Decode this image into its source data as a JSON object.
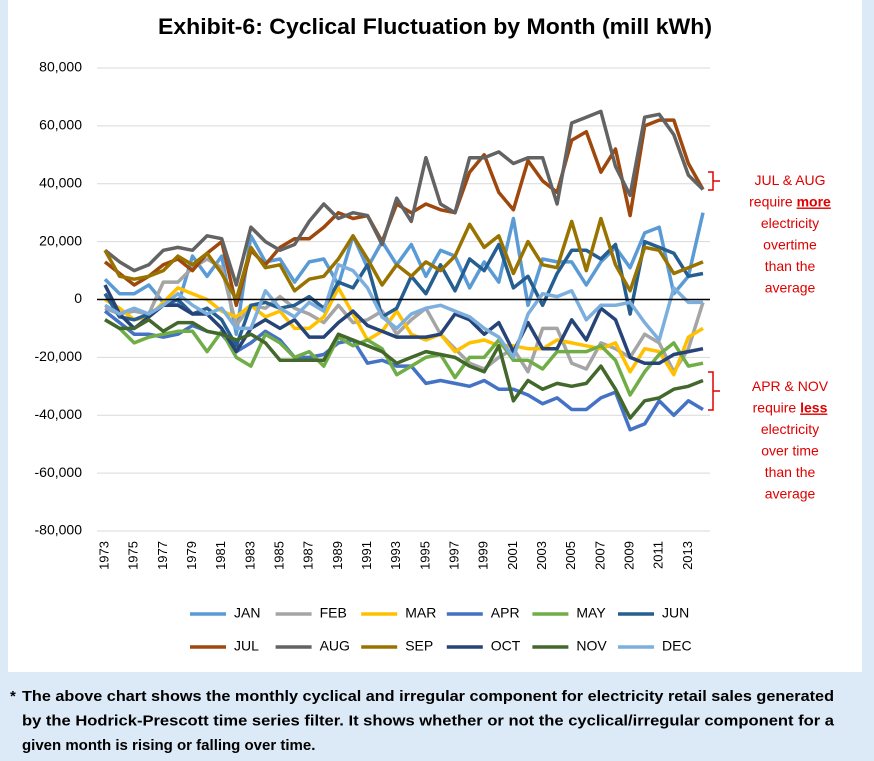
{
  "chart_data": {
    "type": "line",
    "title": "Exhibit-6: Cyclical Fluctuation by Month (mill kWh)",
    "categories": [
      "1973",
      null,
      "1975",
      null,
      "1977",
      null,
      "1979",
      null,
      "1981",
      null,
      "1983",
      null,
      "1985",
      null,
      "1987",
      null,
      "1989",
      null,
      "1991",
      null,
      "1993",
      null,
      "1995",
      null,
      "1997",
      null,
      "1999",
      null,
      "2001",
      null,
      "2003",
      null,
      "2005",
      null,
      "2007",
      null,
      "2009",
      null,
      "2011",
      null,
      "2013",
      null
    ],
    "ylim": [
      -80000,
      80000
    ],
    "yticks": [
      {
        "value": -80000,
        "label": "-80,000"
      },
      {
        "value": -60000,
        "label": "-60,000"
      },
      {
        "value": -40000,
        "label": "-40,000"
      },
      {
        "value": -20000,
        "label": "-20,000"
      },
      0,
      {
        "value": 20000,
        "label": "20,000"
      },
      {
        "value": 40000,
        "label": "40,000"
      },
      {
        "value": 60000,
        "label": "60,000"
      },
      {
        "value": 80000,
        "label": "80,000"
      }
    ],
    "grid": true,
    "series": [
      {
        "name": "JAN",
        "color": "#5b9bd5",
        "values": [
          7000,
          2000,
          2000,
          5000,
          -1000,
          -2000,
          15000,
          8000,
          15000,
          -12000,
          22000,
          13000,
          14000,
          6000,
          13000,
          14000,
          5000,
          22000,
          11000,
          20000,
          12000,
          19000,
          8000,
          17000,
          15000,
          4000,
          13000,
          6000,
          28000,
          -2000,
          14000,
          13000,
          13000,
          5000,
          13000,
          18000,
          11000,
          23000,
          25000,
          2000,
          8000,
          30000
        ]
      },
      {
        "name": "FEB",
        "color": "#a5a5a5",
        "values": [
          -3000,
          -5000,
          -4000,
          -5000,
          6000,
          6000,
          11000,
          14000,
          11000,
          -9000,
          -2000,
          -3000,
          1000,
          -3000,
          -5000,
          -8000,
          -2000,
          -8000,
          -7000,
          -4000,
          -12000,
          -7000,
          -3000,
          -12000,
          -17000,
          -22000,
          -24000,
          -20000,
          -17000,
          -25000,
          -10000,
          -10000,
          -22000,
          -24000,
          -15000,
          -17000,
          -20000,
          -12000,
          -15000,
          -25000,
          -17000,
          -1000
        ]
      },
      {
        "name": "MAR",
        "color": "#ffc000",
        "values": [
          0,
          -3000,
          -7000,
          -6000,
          -1000,
          4000,
          2000,
          0,
          -4000,
          -6000,
          -2000,
          -6000,
          -4000,
          -10000,
          -10000,
          -6000,
          4000,
          -5000,
          -14000,
          -11000,
          -4000,
          -12000,
          -14000,
          -12000,
          -18000,
          -15000,
          -14000,
          -16000,
          -16000,
          -17000,
          -17000,
          -14000,
          -15000,
          -16000,
          -17000,
          -15000,
          -25000,
          -17000,
          -18000,
          -26000,
          -13000,
          -10000
        ]
      },
      {
        "name": "APR",
        "color": "#4472c4",
        "values": [
          -4000,
          -8000,
          -12000,
          -12000,
          -13000,
          -12000,
          -9000,
          -11000,
          -12000,
          -18000,
          -15000,
          -11000,
          -14000,
          -20000,
          -20000,
          -19000,
          -15000,
          -14000,
          -22000,
          -21000,
          -23000,
          -23000,
          -29000,
          -28000,
          -29000,
          -30000,
          -28000,
          -31000,
          -31000,
          -33000,
          -36000,
          -34000,
          -38000,
          -38000,
          -34000,
          -32000,
          -45000,
          -43000,
          -35000,
          -40000,
          -35000,
          -38000
        ]
      },
      {
        "name": "MAY",
        "color": "#70ad47",
        "values": [
          -7000,
          -10000,
          -15000,
          -13000,
          -12000,
          -11000,
          -11000,
          -18000,
          -11000,
          -20000,
          -23000,
          -12000,
          -15000,
          -20000,
          -18000,
          -23000,
          -13000,
          -16000,
          -14000,
          -17000,
          -26000,
          -23000,
          -20000,
          -19000,
          -27000,
          -20000,
          -20000,
          -14000,
          -21000,
          -21000,
          -24000,
          -18000,
          -18000,
          -18000,
          -16000,
          -21000,
          -33000,
          -25000,
          -19000,
          -15000,
          -23000,
          -22000
        ]
      },
      {
        "name": "JUN",
        "color": "#255e91",
        "values": [
          2000,
          -6000,
          -7000,
          -5000,
          -2000,
          0,
          -5000,
          -3000,
          -7000,
          -16000,
          -2000,
          -1000,
          -3000,
          -2000,
          1000,
          -3000,
          6000,
          4000,
          12000,
          -6000,
          -3000,
          8000,
          2000,
          12000,
          3000,
          14000,
          10000,
          19000,
          4000,
          8000,
          -2000,
          9000,
          17000,
          17000,
          14000,
          19000,
          -5000,
          20000,
          18000,
          16000,
          8000,
          9000
        ]
      },
      {
        "name": "JUL",
        "color": "#9e480e",
        "values": [
          13000,
          9000,
          5000,
          8000,
          12000,
          14000,
          10000,
          16000,
          20000,
          -2000,
          17000,
          12000,
          18000,
          21000,
          21000,
          25000,
          30000,
          28000,
          29000,
          20000,
          33000,
          30000,
          33000,
          31000,
          30000,
          44000,
          50000,
          37000,
          31000,
          48000,
          41000,
          37000,
          55000,
          58000,
          44000,
          52000,
          29000,
          60000,
          62000,
          62000,
          47000,
          38000
        ]
      },
      {
        "name": "AUG",
        "color": "#636363",
        "values": [
          17000,
          13000,
          10000,
          12000,
          17000,
          18000,
          17000,
          22000,
          21000,
          5000,
          25000,
          20000,
          17000,
          19000,
          27000,
          33000,
          28000,
          30000,
          29000,
          19000,
          35000,
          27000,
          49000,
          33000,
          30000,
          49000,
          49000,
          51000,
          47000,
          49000,
          49000,
          33000,
          61000,
          63000,
          65000,
          46000,
          36000,
          63000,
          64000,
          57000,
          43000,
          38000
        ]
      },
      {
        "name": "SEP",
        "color": "#997300",
        "values": [
          17000,
          8000,
          7000,
          8000,
          10000,
          15000,
          12000,
          16000,
          9000,
          0,
          18000,
          11000,
          12000,
          3000,
          7000,
          8000,
          14000,
          22000,
          14000,
          5000,
          12000,
          8000,
          13000,
          10000,
          15000,
          26000,
          18000,
          22000,
          9000,
          20000,
          12000,
          11000,
          27000,
          10000,
          28000,
          12000,
          3000,
          18000,
          17000,
          9000,
          11000,
          13000
        ]
      },
      {
        "name": "OCT",
        "color": "#264478",
        "values": [
          5000,
          -5000,
          -10000,
          -6000,
          -2000,
          -2000,
          -5000,
          -5000,
          -10000,
          -18000,
          -10000,
          -7000,
          -10000,
          -7000,
          -13000,
          -13000,
          -8000,
          -4000,
          -9000,
          -11000,
          -13000,
          -13000,
          -13000,
          -12000,
          -5000,
          -7000,
          -12000,
          -8000,
          -18000,
          -8000,
          -17000,
          -17000,
          -7000,
          -14000,
          -3000,
          -7000,
          -20000,
          -22000,
          -22000,
          -19000,
          -18000,
          -17000
        ]
      },
      {
        "name": "NOV",
        "color": "#43682b",
        "values": [
          -7000,
          -10000,
          -10000,
          -7000,
          -11000,
          -8000,
          -8000,
          -11000,
          -12000,
          -14000,
          -12000,
          -15000,
          -21000,
          -21000,
          -21000,
          -21000,
          -12000,
          -14000,
          -16000,
          -18000,
          -22000,
          -20000,
          -18000,
          -19000,
          -20000,
          -23000,
          -25000,
          -16000,
          -35000,
          -28000,
          -31000,
          -29000,
          -30000,
          -29000,
          -23000,
          -31000,
          -41000,
          -35000,
          -34000,
          -31000,
          -30000,
          -28000
        ]
      },
      {
        "name": "DEC",
        "color": "#7cafdd",
        "values": [
          -2000,
          -5000,
          -3000,
          -5000,
          -2000,
          2000,
          -2000,
          -5000,
          -3000,
          -10000,
          -10000,
          3000,
          -3000,
          -6000,
          -1000,
          -4000,
          12000,
          10000,
          4000,
          -6000,
          -10000,
          -5000,
          -3000,
          -2000,
          -4000,
          -6000,
          -10000,
          -13000,
          -20000,
          -5000,
          2000,
          1000,
          3000,
          -7000,
          -2000,
          -2000,
          -1000,
          -8000,
          -14000,
          4000,
          -1000,
          -1000
        ]
      }
    ],
    "annotations": [
      {
        "lines": [
          [
            "JUL & AUG"
          ],
          [
            "require ",
            "more"
          ],
          [
            "electricity"
          ],
          [
            "overtime"
          ],
          [
            "than the"
          ],
          [
            "average"
          ]
        ]
      },
      {
        "lines": [
          [
            "APR & NOV"
          ],
          [
            "require ",
            "less"
          ],
          [
            "electricity"
          ],
          [
            "over time"
          ],
          [
            "than the"
          ],
          [
            "average"
          ]
        ]
      }
    ]
  },
  "footnote": {
    "marker": "*",
    "lines": [
      "The above chart shows the monthly cyclical and irregular component for electricity retail sales generated",
      "by the Hodrick-Prescott time series filter. It shows whether or not the cyclical/irregular component for a",
      "given month is rising or falling over time."
    ]
  }
}
